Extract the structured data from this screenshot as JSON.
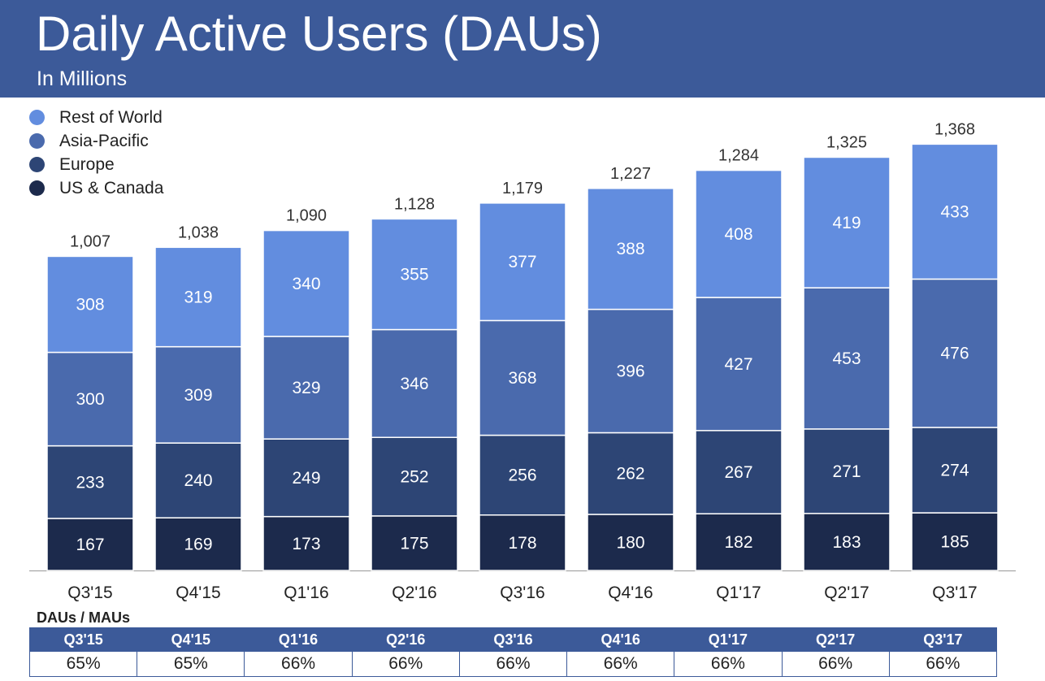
{
  "header": {
    "title": "Daily Active Users (DAUs)",
    "subtitle": "In Millions"
  },
  "colors": {
    "header_bg": "#3c5a99",
    "rest_of_world": "#628ddf",
    "asia_pacific": "#4a6aad",
    "europe": "#2d4575",
    "us_canada": "#1c2a4c"
  },
  "chart_data": {
    "type": "bar",
    "stacked": true,
    "title": "Daily Active Users (DAUs)",
    "subtitle": "In Millions",
    "categories": [
      "Q3'15",
      "Q4'15",
      "Q1'16",
      "Q2'16",
      "Q3'16",
      "Q4'16",
      "Q1'17",
      "Q2'17",
      "Q3'17"
    ],
    "series": [
      {
        "name": "US & Canada",
        "color": "#1c2a4c",
        "values": [
          167,
          169,
          173,
          175,
          178,
          180,
          182,
          183,
          185
        ]
      },
      {
        "name": "Europe",
        "color": "#2d4575",
        "values": [
          233,
          240,
          249,
          252,
          256,
          262,
          267,
          271,
          274
        ]
      },
      {
        "name": "Asia-Pacific",
        "color": "#4a6aad",
        "values": [
          300,
          309,
          329,
          346,
          368,
          396,
          427,
          453,
          476
        ]
      },
      {
        "name": "Rest of World",
        "color": "#628ddf",
        "values": [
          308,
          319,
          340,
          355,
          377,
          388,
          408,
          419,
          433
        ]
      }
    ],
    "totals": [
      "1,007",
      "1,038",
      "1,090",
      "1,128",
      "1,179",
      "1,227",
      "1,284",
      "1,325",
      "1,368"
    ],
    "legend_order": [
      "Rest of World",
      "Asia-Pacific",
      "Europe",
      "US & Canada"
    ],
    "legend_position": "top-left",
    "grid": false
  },
  "mau_table": {
    "title": "DAUs / MAUs",
    "quarters": [
      "Q3'15",
      "Q4'15",
      "Q1'16",
      "Q2'16",
      "Q3'16",
      "Q4'16",
      "Q1'17",
      "Q2'17",
      "Q3'17"
    ],
    "ratios": [
      "65%",
      "65%",
      "66%",
      "66%",
      "66%",
      "66%",
      "66%",
      "66%",
      "66%"
    ]
  }
}
